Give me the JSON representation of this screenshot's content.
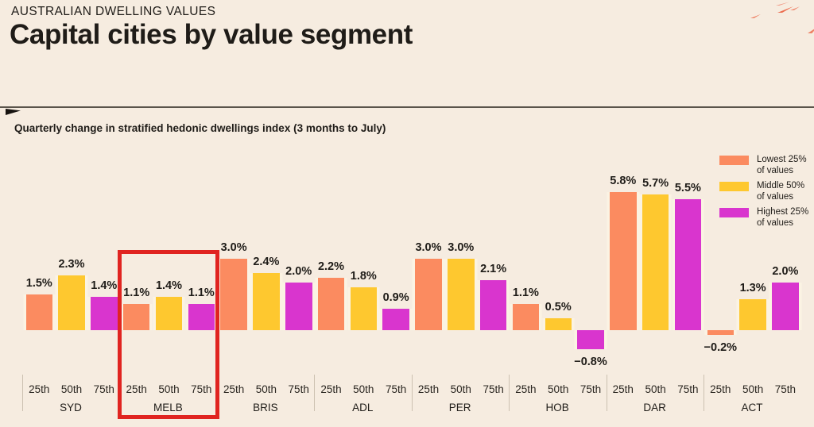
{
  "header": {
    "eyebrow": "AUSTRALIAN DWELLING VALUES",
    "title": "Capital cities by value segment"
  },
  "chart": {
    "subtitle": "Quarterly change in stratified hedonic dwellings index (3 months to July)"
  },
  "legend": {
    "items": [
      {
        "line1": "Lowest 25%",
        "line2": "of values",
        "color": "#fb8b60"
      },
      {
        "line1": "Middle 50%",
        "line2": "of values",
        "color": "#fec82f"
      },
      {
        "line1": "Highest 25%",
        "line2": "of values",
        "color": "#d935ce"
      }
    ]
  },
  "colors": {
    "background": "#f6ece0",
    "text": "#1f1c18",
    "highlight_box": "#e02420",
    "decor_accent": "#ec6c4e"
  },
  "chart_data": {
    "type": "bar",
    "title": "Capital cities by value segment",
    "subtitle": "Quarterly change in stratified hedonic dwellings index (3 months to July)",
    "unit": "%",
    "categories": [
      "SYD",
      "MELB",
      "BRIS",
      "ADL",
      "PER",
      "HOB",
      "DAR",
      "ACT"
    ],
    "x_tick_labels": [
      "25th",
      "50th",
      "75th"
    ],
    "series": [
      {
        "name": "Lowest 25% of values",
        "color": "#fb8b60",
        "values": [
          1.5,
          1.1,
          3.0,
          2.2,
          3.0,
          1.1,
          5.8,
          -0.2
        ]
      },
      {
        "name": "Middle 50% of values",
        "color": "#fec82f",
        "values": [
          2.3,
          1.4,
          2.4,
          1.8,
          3.0,
          0.5,
          5.7,
          1.3
        ]
      },
      {
        "name": "Highest 25% of values",
        "color": "#d935ce",
        "values": [
          1.4,
          1.1,
          2.0,
          0.9,
          2.1,
          -0.8,
          5.5,
          2.0
        ]
      }
    ],
    "value_labels": [
      [
        "1.5%",
        "1.1%",
        "3.0%",
        "2.2%",
        "3.0%",
        "1.1%",
        "5.8%",
        "−0.2%"
      ],
      [
        "2.3%",
        "1.4%",
        "2.4%",
        "1.8%",
        "3.0%",
        "0.5%",
        "5.7%",
        "1.3%"
      ],
      [
        "1.4%",
        "1.1%",
        "2.0%",
        "0.9%",
        "2.1%",
        "−0.8%",
        "5.5%",
        "2.0%"
      ]
    ],
    "highlighted_category": "MELB",
    "ylim": [
      -1.0,
      6.2
    ],
    "grid": false,
    "legend_position": "top-right"
  }
}
